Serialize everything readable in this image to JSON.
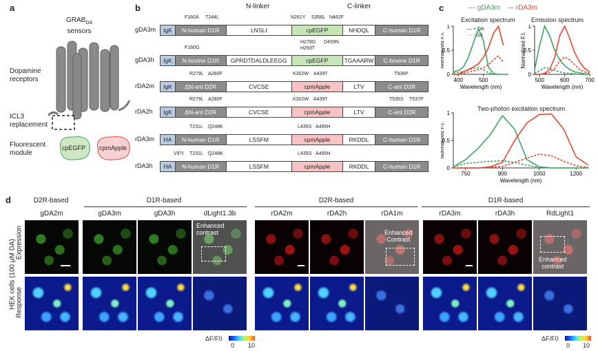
{
  "panels": {
    "a": "a",
    "b": "b",
    "c": "c",
    "d": "d"
  },
  "panel_a": {
    "sensor_title": "GRAB",
    "sensor_sub": "DA",
    "sensor_suffix": "sensors",
    "receptors": "Dopamine\nreceptors",
    "icl3": "ICL3\nreplacement",
    "module": "Fluorescent\nmodule",
    "cpegfp": "cpEGFP",
    "cpmapple": "cpmApple"
  },
  "panel_b": {
    "header_n": "N-linker",
    "header_c": "C-linker",
    "rows": [
      {
        "name": "gDA3m",
        "segs": [
          "IgK",
          "N-human D1R",
          "LNSLI",
          "cpEGFP",
          "NHDQL",
          "C-human D1R"
        ],
        "top": [
          "F160A",
          "T244L",
          "N261Y",
          "S356L",
          "N462F"
        ],
        "bottom": []
      },
      {
        "name": "gDA3h",
        "segs": [
          "IgK",
          "N-bovine D1R",
          "GPRDTDALDLEEGG",
          "cpEGFP",
          "TGAAARW",
          "C-bovine D1R"
        ],
        "top": [
          "F160G",
          "H278G",
          "D459N",
          "H293T"
        ],
        "bottom": []
      },
      {
        "name": "rDA2m",
        "segs": [
          "IgK",
          "ΔN-ant D2R",
          "CVCSE",
          "cpmApple",
          "LTV",
          "C-ant D2R"
        ],
        "top": [
          "R279L",
          "A280F",
          "K302W",
          "A439T",
          "T506P"
        ],
        "bottom": []
      },
      {
        "name": "rDA2h",
        "segs": [
          "IgK",
          "ΔN-ant D2R",
          "CVCSE",
          "cpmApple",
          "LTV",
          "C-ant D2R"
        ],
        "top": [
          "R279L",
          "A280F",
          "K302W",
          "A439T",
          "T535S",
          "T537P"
        ],
        "bottom": []
      },
      {
        "name": "rDA3m",
        "segs": [
          "HA",
          "N-human D1R",
          "LSSFM",
          "cpmApple",
          "RKDDL",
          "C-human D1R"
        ],
        "top": [
          "T231L",
          "Q248K",
          "L435S",
          "A495H"
        ],
        "bottom": []
      },
      {
        "name": "rDA3h",
        "segs": [
          "HA",
          "N-human D1R",
          "LSSFM",
          "cpmApple",
          "RKDDL",
          "C-human D1R"
        ],
        "top": [
          "V97I",
          "T231L",
          "Q248K",
          "L435S",
          "A495H"
        ],
        "bottom": []
      }
    ]
  },
  "panel_c": {
    "legend": [
      "gDA3m",
      "rDA3m"
    ],
    "excitation_title": "Excitation spectrum",
    "emission_title": "Emission spectrum",
    "twophoton_title": "Two-photon excitation spectrum",
    "ylabel": "Normalized F.I.",
    "xlabel": "Wavelength (nm)",
    "da_plus": "+ DA",
    "da_minus": "- DA",
    "colors": {
      "green": "#3aa65b",
      "red": "#e8452f"
    },
    "chart_data": [
      {
        "type": "line",
        "title": "Excitation spectrum",
        "x": [
          380,
          400,
          420,
          440,
          460,
          480,
          500,
          520,
          540,
          560,
          580
        ],
        "xlim": [
          380,
          600
        ],
        "ylim": [
          0,
          1
        ],
        "xticks": [
          400,
          500
        ],
        "yticks": [
          0,
          0.5,
          1
        ],
        "series": [
          {
            "name": "gDA3m + DA",
            "values": [
              0.05,
              0.08,
              0.15,
              0.35,
              0.65,
              0.95,
              0.7,
              0.15,
              0.02,
              0,
              0
            ]
          },
          {
            "name": "gDA3m - DA",
            "values": [
              0.03,
              0.04,
              0.06,
              0.09,
              0.12,
              0.14,
              0.1,
              0.03,
              0.01,
              0,
              0
            ]
          },
          {
            "name": "rDA3m + DA",
            "values": [
              0,
              0,
              0.05,
              0.1,
              0.15,
              0.22,
              0.35,
              0.55,
              0.85,
              1,
              0.6
            ]
          },
          {
            "name": "rDA3m - DA",
            "values": [
              0,
              0,
              0.02,
              0.05,
              0.07,
              0.1,
              0.13,
              0.2,
              0.3,
              0.38,
              0.25
            ]
          }
        ]
      },
      {
        "type": "line",
        "title": "Emission spectrum",
        "x": [
          480,
          500,
          520,
          540,
          560,
          580,
          600,
          620,
          640,
          660,
          680,
          700
        ],
        "xlim": [
          480,
          700
        ],
        "ylim": [
          0,
          1
        ],
        "xticks": [
          500,
          600,
          700
        ],
        "yticks": [
          0,
          0.5,
          1
        ],
        "series": [
          {
            "name": "gDA3m + DA",
            "values": [
              0.1,
              0.6,
              1,
              0.8,
              0.5,
              0.3,
              0.18,
              0.1,
              0.05,
              0.03,
              0.01,
              0
            ]
          },
          {
            "name": "gDA3m - DA",
            "values": [
              0.02,
              0.08,
              0.14,
              0.12,
              0.08,
              0.05,
              0.03,
              0.02,
              0.01,
              0,
              0,
              0
            ]
          },
          {
            "name": "rDA3m + DA",
            "values": [
              0,
              0,
              0.02,
              0.1,
              0.35,
              0.8,
              1,
              0.75,
              0.45,
              0.25,
              0.12,
              0.05
            ]
          },
          {
            "name": "rDA3m - DA",
            "values": [
              0,
              0,
              0.01,
              0.04,
              0.12,
              0.28,
              0.36,
              0.3,
              0.2,
              0.1,
              0.05,
              0.02
            ]
          }
        ]
      },
      {
        "type": "line",
        "title": "Two-photon excitation spectrum",
        "x": [
          700,
          750,
          800,
          850,
          900,
          950,
          1000,
          1050,
          1100,
          1150,
          1200,
          1250
        ],
        "xlim": [
          700,
          1250
        ],
        "ylim": [
          0,
          1
        ],
        "xticks": [
          750,
          900,
          1050,
          1200
        ],
        "yticks": [
          0,
          0.5,
          1
        ],
        "series": [
          {
            "name": "gDA3m + DA",
            "values": [
              0.02,
              0.15,
              0.35,
              0.6,
              0.95,
              0.7,
              0.15,
              0.02,
              0,
              0,
              0,
              0
            ]
          },
          {
            "name": "gDA3m - DA",
            "values": [
              0.02,
              0.08,
              0.1,
              0.12,
              0.13,
              0.1,
              0.05,
              0.01,
              0,
              0,
              0,
              0
            ]
          },
          {
            "name": "rDA3m + DA",
            "values": [
              0,
              0,
              0,
              0.02,
              0.1,
              0.5,
              0.82,
              0.97,
              0.98,
              0.7,
              0.2,
              0.05
            ]
          },
          {
            "name": "rDA3m - DA",
            "values": [
              0,
              0,
              0,
              0.01,
              0.03,
              0.1,
              0.18,
              0.25,
              0.22,
              0.12,
              0.04,
              0.01
            ]
          }
        ]
      }
    ]
  },
  "panel_d": {
    "side_label": "HEK cells (100 μM DA)",
    "row_labels": [
      "Expression",
      "Response"
    ],
    "group_headers": [
      "D2R-based",
      "D1R-based",
      "D2R-based",
      "D1R-based"
    ],
    "columns": [
      "gDA2m",
      "gDA3m",
      "gDA3h",
      "dLight1.3b",
      "rDA2m",
      "rDA2h",
      "rDA1m",
      "rDA3m",
      "rDA3h",
      "RdLight1"
    ],
    "enhanced_1": "Enhanced\ncontrast",
    "enhanced_2": "Enhanced\nContrast",
    "enhanced_3": "Enhanced\ncontrast",
    "colorbar_label": "ΔF/F0",
    "colorbar_min": "0",
    "colorbar_max": "10"
  }
}
